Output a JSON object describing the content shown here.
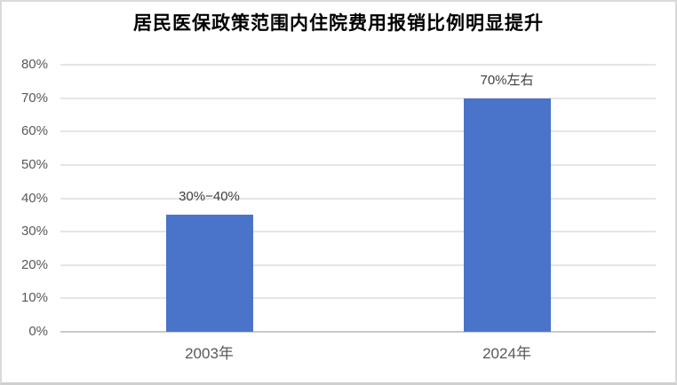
{
  "colors": {
    "background": "#FFFFFF",
    "border": "#DADADA",
    "title_text": "#000000",
    "grid": "#E5E5E5",
    "axis": "#C9C9C9",
    "tick_text": "#595959",
    "data_label_text": "#3F3F3F",
    "category_text": "#595959",
    "bar": "#4A74C9"
  },
  "chart_data": {
    "type": "bar",
    "title": "居民医保政策范围内住院费用报销比例明显提升",
    "categories": [
      "2003年",
      "2024年"
    ],
    "values": [
      35,
      70
    ],
    "value_display": [
      "30%−40%",
      "70%左右"
    ],
    "xlabel": "",
    "ylabel": "",
    "ylim": [
      0,
      80
    ],
    "ytick_step": 10,
    "ytick_labels": [
      "0%",
      "10%",
      "20%",
      "30%",
      "40%",
      "50%",
      "60%",
      "70%",
      "80%"
    ],
    "grid": "horizontal",
    "legend": "none"
  }
}
